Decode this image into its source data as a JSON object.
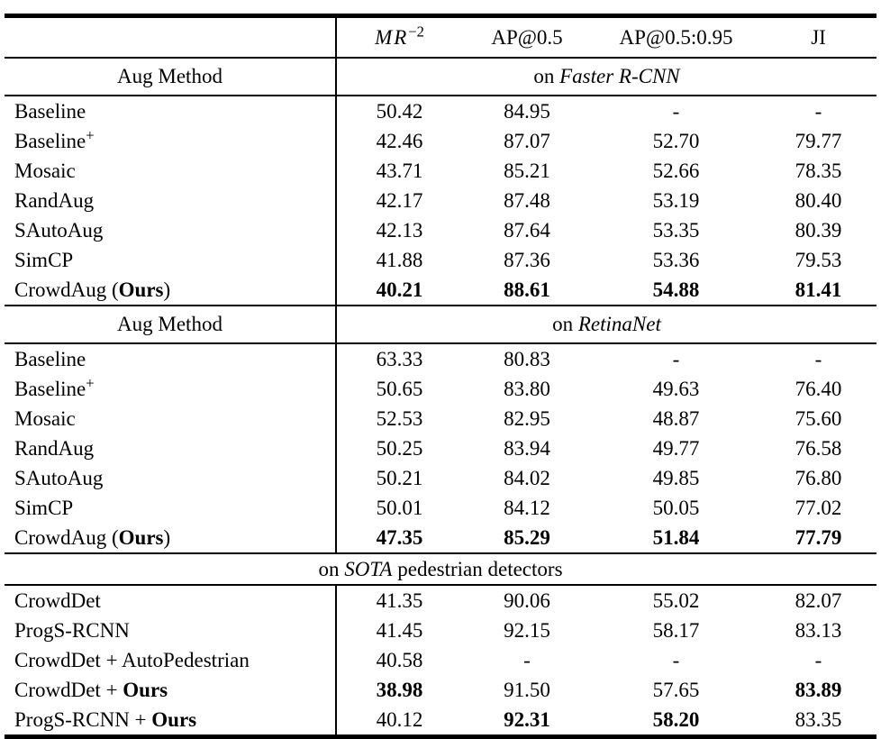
{
  "table": {
    "metric_mr": {
      "base": "MR",
      "sup": "−2"
    },
    "metric_ap50": "AP@0.5",
    "metric_ap5095": "AP@0.5:0.95",
    "metric_ji": "JI",
    "sections": [
      {
        "row_label": "Aug Method",
        "span_prefix": "on ",
        "span_italic_text": "Faster R-CNN",
        "rows": [
          {
            "method": [
              {
                "t": "Baseline"
              }
            ],
            "values": [
              {
                "t": "50.42"
              },
              {
                "t": "84.95"
              },
              {
                "t": "-"
              },
              {
                "t": "-"
              }
            ]
          },
          {
            "method": [
              {
                "t": "Baseline"
              },
              {
                "t": "+",
                "sup": true
              }
            ],
            "values": [
              {
                "t": "42.46"
              },
              {
                "t": "87.07"
              },
              {
                "t": "52.70"
              },
              {
                "t": "79.77"
              }
            ]
          },
          {
            "method": [
              {
                "t": "Mosaic"
              }
            ],
            "values": [
              {
                "t": "43.71"
              },
              {
                "t": "85.21"
              },
              {
                "t": "52.66"
              },
              {
                "t": "78.35"
              }
            ]
          },
          {
            "method": [
              {
                "t": "RandAug"
              }
            ],
            "values": [
              {
                "t": "42.17"
              },
              {
                "t": "87.48"
              },
              {
                "t": "53.19"
              },
              {
                "t": "80.40"
              }
            ]
          },
          {
            "method": [
              {
                "t": "SAutoAug"
              }
            ],
            "values": [
              {
                "t": "42.13"
              },
              {
                "t": "87.64"
              },
              {
                "t": "53.35"
              },
              {
                "t": "80.39"
              }
            ]
          },
          {
            "method": [
              {
                "t": "SimCP"
              }
            ],
            "values": [
              {
                "t": "41.88"
              },
              {
                "t": "87.36"
              },
              {
                "t": "53.36"
              },
              {
                "t": "79.53"
              }
            ]
          },
          {
            "method": [
              {
                "t": "CrowdAug ("
              },
              {
                "t": "Ours",
                "b": true
              },
              {
                "t": ")"
              }
            ],
            "values": [
              {
                "t": "40.21",
                "b": true
              },
              {
                "t": "88.61",
                "b": true
              },
              {
                "t": "54.88",
                "b": true
              },
              {
                "t": "81.41",
                "b": true
              }
            ]
          }
        ]
      },
      {
        "row_label": "Aug Method",
        "span_prefix": "on ",
        "span_italic_text": "RetinaNet",
        "rows": [
          {
            "method": [
              {
                "t": "Baseline"
              }
            ],
            "values": [
              {
                "t": "63.33"
              },
              {
                "t": "80.83"
              },
              {
                "t": "-"
              },
              {
                "t": "-"
              }
            ]
          },
          {
            "method": [
              {
                "t": "Baseline"
              },
              {
                "t": "+",
                "sup": true
              }
            ],
            "values": [
              {
                "t": "50.65"
              },
              {
                "t": "83.80"
              },
              {
                "t": "49.63"
              },
              {
                "t": "76.40"
              }
            ]
          },
          {
            "method": [
              {
                "t": "Mosaic"
              }
            ],
            "values": [
              {
                "t": "52.53"
              },
              {
                "t": "82.95"
              },
              {
                "t": "48.87"
              },
              {
                "t": "75.60"
              }
            ]
          },
          {
            "method": [
              {
                "t": "RandAug"
              }
            ],
            "values": [
              {
                "t": "50.25"
              },
              {
                "t": "83.94"
              },
              {
                "t": "49.77"
              },
              {
                "t": "76.58"
              }
            ]
          },
          {
            "method": [
              {
                "t": "SAutoAug"
              }
            ],
            "values": [
              {
                "t": "50.21"
              },
              {
                "t": "84.02"
              },
              {
                "t": "49.85"
              },
              {
                "t": "76.80"
              }
            ]
          },
          {
            "method": [
              {
                "t": "SimCP"
              }
            ],
            "values": [
              {
                "t": "50.01"
              },
              {
                "t": "84.12"
              },
              {
                "t": "50.05"
              },
              {
                "t": "77.02"
              }
            ]
          },
          {
            "method": [
              {
                "t": "CrowdAug ("
              },
              {
                "t": "Ours",
                "b": true
              },
              {
                "t": ")"
              }
            ],
            "values": [
              {
                "t": "47.35",
                "b": true
              },
              {
                "t": "85.29",
                "b": true
              },
              {
                "t": "51.84",
                "b": true
              },
              {
                "t": "77.79",
                "b": true
              }
            ]
          }
        ]
      },
      {
        "full_prefix": "on ",
        "full_italic_text": "SOTA",
        "full_suffix": " pedestrian detectors",
        "rows": [
          {
            "method": [
              {
                "t": "CrowdDet"
              }
            ],
            "values": [
              {
                "t": "41.35"
              },
              {
                "t": "90.06"
              },
              {
                "t": "55.02"
              },
              {
                "t": "82.07"
              }
            ]
          },
          {
            "method": [
              {
                "t": "ProgS-RCNN"
              }
            ],
            "values": [
              {
                "t": "41.45"
              },
              {
                "t": "92.15"
              },
              {
                "t": "58.17"
              },
              {
                "t": "83.13"
              }
            ]
          },
          {
            "method": [
              {
                "t": "CrowdDet + AutoPedestrian"
              }
            ],
            "values": [
              {
                "t": "40.58"
              },
              {
                "t": "-"
              },
              {
                "t": "-"
              },
              {
                "t": "-"
              }
            ]
          },
          {
            "method": [
              {
                "t": "CrowdDet + "
              },
              {
                "t": "Ours",
                "b": true
              }
            ],
            "values": [
              {
                "t": "38.98",
                "b": true
              },
              {
                "t": "91.50"
              },
              {
                "t": "57.65"
              },
              {
                "t": "83.89",
                "b": true
              }
            ]
          },
          {
            "method": [
              {
                "t": "ProgS-RCNN + "
              },
              {
                "t": "Ours",
                "b": true
              }
            ],
            "values": [
              {
                "t": "40.12"
              },
              {
                "t": "92.31",
                "b": true
              },
              {
                "t": "58.20",
                "b": true
              },
              {
                "t": "83.35"
              }
            ]
          }
        ]
      }
    ]
  }
}
